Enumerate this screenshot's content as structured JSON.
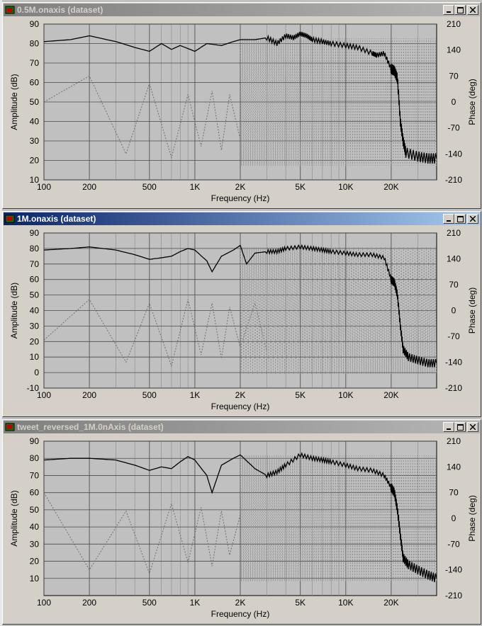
{
  "windows": [
    {
      "title": "0.5M.onaxis (dataset)",
      "state": "inactive",
      "title_color": "#808080",
      "chart_data": {
        "type": "line",
        "xlabel": "Frequency (Hz)",
        "ylabel": "Amplitude (dB)",
        "y2label": "Phase (deg)",
        "xscale": "log",
        "xlim": [
          100,
          40000
        ],
        "ylim": [
          10,
          90
        ],
        "y2lim": [
          -210,
          210
        ],
        "x_ticks": [
          "100",
          "200",
          "500",
          "1K",
          "2K",
          "5K",
          "10K",
          "20K"
        ],
        "y_ticks": [
          "90",
          "80",
          "70",
          "60",
          "50",
          "40",
          "30",
          "20",
          "10"
        ],
        "y2_ticks": [
          "210",
          "140",
          "70",
          "0",
          "-70",
          "-140",
          "-210"
        ],
        "grid": true,
        "series": [
          {
            "style": "solid-black",
            "x": [
              100,
              150,
              200,
              300,
              400,
              500,
              600,
              700,
              800,
              1000,
              1200,
              1500,
              1800,
              2000,
              2500,
              3000,
              3500,
              4000,
              4500,
              5000,
              5500,
              6000,
              7000,
              8000,
              10000,
              12000,
              15000,
              16000,
              18000,
              20000,
              21000,
              22000,
              23000,
              24000,
              25000,
              30000,
              35000,
              40000
            ],
            "values": [
              81,
              82,
              84,
              81,
              78,
              76,
              80,
              77,
              79,
              76,
              80,
              79,
              81,
              82,
              82,
              83,
              80,
              84,
              83,
              85,
              84,
              82,
              81,
              80,
              79,
              78,
              75,
              74,
              75,
              67,
              66,
              62,
              40,
              30,
              24,
              22,
              21,
              21
            ]
          },
          {
            "style": "dotted-gray",
            "x": [
              100,
              200,
              350,
              500,
              700,
              900,
              1100,
              1300,
              1500,
              1700,
              2000
            ],
            "values": [
              0,
              70,
              -140,
              50,
              -150,
              20,
              -120,
              30,
              -130,
              20,
              -100
            ]
          }
        ]
      }
    },
    {
      "title": "1M.onaxis (dataset)",
      "state": "active",
      "title_color": "#0a246a",
      "chart_data": {
        "type": "line",
        "xlabel": "Frequency (Hz)",
        "ylabel": "Amplitude (dB)",
        "y2label": "Phase (deg)",
        "xscale": "log",
        "xlim": [
          100,
          40000
        ],
        "ylim": [
          -10,
          90
        ],
        "y2lim": [
          -210,
          210
        ],
        "x_ticks": [
          "100",
          "200",
          "500",
          "1K",
          "2K",
          "5K",
          "10K",
          "20K"
        ],
        "y_ticks": [
          "90",
          "80",
          "70",
          "60",
          "50",
          "40",
          "30",
          "20",
          "10",
          "0",
          "-10"
        ],
        "y2_ticks": [
          "210",
          "140",
          "70",
          "0",
          "-70",
          "-140",
          "-210"
        ],
        "grid": true,
        "series": [
          {
            "style": "solid-black",
            "x": [
              100,
              150,
              200,
              300,
              400,
              500,
              600,
              700,
              800,
              900,
              1000,
              1200,
              1300,
              1500,
              1800,
              2000,
              2200,
              2500,
              3000,
              3500,
              4000,
              5000,
              6000,
              7000,
              8000,
              10000,
              12000,
              15000,
              18000,
              20000,
              21000,
              22000,
              23000,
              24000,
              26000,
              30000,
              35000,
              40000
            ],
            "values": [
              79,
              80,
              81,
              79,
              76,
              73,
              74,
              75,
              78,
              80,
              79,
              72,
              65,
              75,
              79,
              82,
              70,
              77,
              78,
              78,
              80,
              81,
              80,
              79,
              78,
              77,
              76,
              76,
              74,
              60,
              58,
              50,
              30,
              15,
              10,
              8,
              6,
              6
            ]
          },
          {
            "style": "dotted-gray",
            "x": [
              100,
              200,
              350,
              500,
              700,
              900,
              1100,
              1300,
              1500,
              1700,
              2000,
              2500,
              3000
            ],
            "values": [
              -80,
              30,
              -140,
              20,
              -150,
              30,
              -120,
              20,
              -130,
              10,
              -100,
              20,
              -110
            ]
          }
        ]
      }
    },
    {
      "title": "tweet_reversed_1M.0nAxis (dataset)",
      "state": "inactive",
      "title_color": "#808080",
      "chart_data": {
        "type": "line",
        "xlabel": "Frequency (Hz)",
        "ylabel": "Amplitude (dB)",
        "y2label": "Phase (deg)",
        "xscale": "log",
        "xlim": [
          100,
          40000
        ],
        "ylim": [
          0,
          90
        ],
        "y2lim": [
          -210,
          210
        ],
        "x_ticks": [
          "100",
          "200",
          "500",
          "1K",
          "2K",
          "5K",
          "10K",
          "20K"
        ],
        "y_ticks": [
          "90",
          "80",
          "70",
          "60",
          "50",
          "40",
          "30",
          "20",
          "10"
        ],
        "y2_ticks": [
          "210",
          "140",
          "70",
          "0",
          "-70",
          "-140",
          "-210"
        ],
        "grid": true,
        "series": [
          {
            "style": "solid-black",
            "x": [
              100,
              150,
              200,
              300,
              400,
              500,
              600,
              700,
              800,
              900,
              1000,
              1200,
              1300,
              1500,
              1800,
              2000,
              2500,
              3000,
              3500,
              4000,
              5000,
              6000,
              7000,
              8000,
              10000,
              12000,
              15000,
              18000,
              20000,
              21000,
              22000,
              23000,
              24000,
              26000,
              30000,
              35000,
              40000
            ],
            "values": [
              79,
              80,
              80,
              79,
              76,
              73,
              75,
              74,
              78,
              81,
              79,
              70,
              60,
              76,
              80,
              82,
              74,
              70,
              72,
              76,
              82,
              80,
              79,
              78,
              76,
              74,
              73,
              70,
              63,
              60,
              50,
              35,
              22,
              18,
              15,
              12,
              10
            ]
          },
          {
            "style": "dotted-gray",
            "x": [
              100,
              200,
              350,
              500,
              700,
              900,
              1100,
              1300,
              1500,
              1700,
              2000
            ],
            "values": [
              70,
              -140,
              20,
              -150,
              40,
              -120,
              30,
              -130,
              20,
              -100,
              10
            ]
          }
        ]
      }
    }
  ]
}
